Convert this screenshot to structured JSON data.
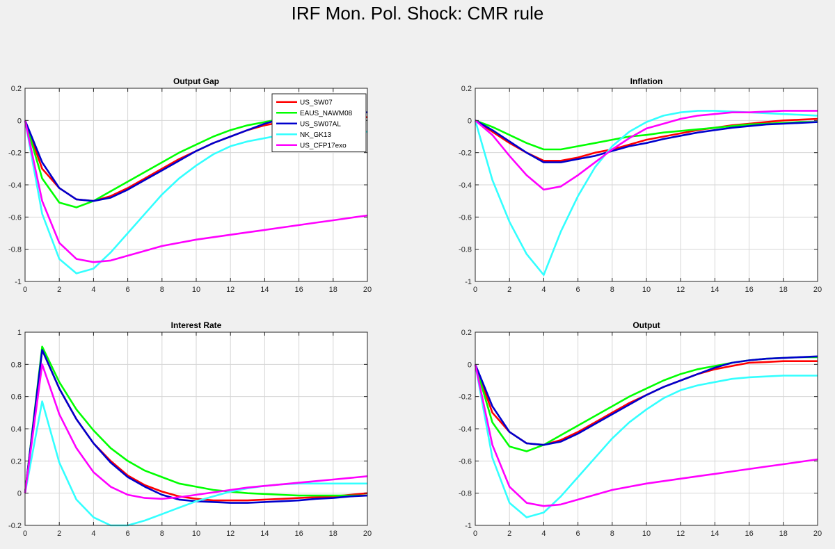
{
  "figure_title": "IRF Mon. Pol. Shock: CMR rule",
  "colors": {
    "US_SW07": "#ff0000",
    "EAUS_NAWM08": "#00ff00",
    "US_SW07AL": "#0000cd",
    "NK_GK13": "#33ffff",
    "US_CFP17exo": "#ff00ff"
  },
  "legend": {
    "placement": "top-right of first panel",
    "entries": [
      "US_SW07",
      "EAUS_NAWM08",
      "US_SW07AL",
      "NK_GK13",
      "US_CFP17exo"
    ]
  },
  "chart_data": [
    {
      "type": "line",
      "title": "Output Gap",
      "grid": true,
      "xlim": [
        0,
        20
      ],
      "ylim": [
        -1,
        0.2
      ],
      "xticks": [
        0,
        2,
        4,
        6,
        8,
        10,
        12,
        14,
        16,
        18,
        20
      ],
      "yticks": [
        -1,
        -0.8,
        -0.6,
        -0.4,
        -0.2,
        0,
        0.2
      ],
      "x": [
        0,
        1,
        2,
        3,
        4,
        5,
        6,
        7,
        8,
        9,
        10,
        11,
        12,
        13,
        14,
        15,
        16,
        17,
        18,
        19,
        20
      ],
      "series": [
        {
          "name": "US_SW07",
          "values": [
            0,
            -0.3,
            -0.42,
            -0.49,
            -0.5,
            -0.47,
            -0.42,
            -0.36,
            -0.3,
            -0.24,
            -0.19,
            -0.14,
            -0.1,
            -0.06,
            -0.03,
            -0.01,
            0.01,
            0.02,
            0.02,
            0.02,
            0.02
          ]
        },
        {
          "name": "EAUS_NAWM08",
          "values": [
            0,
            -0.36,
            -0.51,
            -0.54,
            -0.5,
            -0.44,
            -0.38,
            -0.32,
            -0.26,
            -0.2,
            -0.15,
            -0.1,
            -0.06,
            -0.03,
            -0.01,
            0.01,
            0.03,
            0.04,
            0.04,
            0.05,
            0.05
          ]
        },
        {
          "name": "US_SW07AL",
          "values": [
            0,
            -0.26,
            -0.42,
            -0.49,
            -0.5,
            -0.48,
            -0.43,
            -0.37,
            -0.31,
            -0.25,
            -0.19,
            -0.14,
            -0.1,
            -0.06,
            -0.02,
            0.01,
            0.03,
            0.04,
            0.04,
            0.05,
            0.05
          ]
        },
        {
          "name": "NK_GK13",
          "values": [
            0,
            -0.58,
            -0.86,
            -0.95,
            -0.92,
            -0.82,
            -0.7,
            -0.58,
            -0.46,
            -0.36,
            -0.28,
            -0.21,
            -0.16,
            -0.13,
            -0.11,
            -0.09,
            -0.08,
            -0.075,
            -0.07,
            -0.07,
            -0.07
          ]
        },
        {
          "name": "US_CFP17exo",
          "values": [
            0,
            -0.5,
            -0.76,
            -0.86,
            -0.88,
            -0.87,
            -0.84,
            -0.81,
            -0.78,
            -0.76,
            -0.74,
            -0.725,
            -0.71,
            -0.695,
            -0.68,
            -0.665,
            -0.65,
            -0.635,
            -0.62,
            -0.605,
            -0.59
          ]
        }
      ]
    },
    {
      "type": "line",
      "title": "Inflation",
      "grid": true,
      "xlim": [
        0,
        20
      ],
      "ylim": [
        -1,
        0.2
      ],
      "xticks": [
        0,
        2,
        4,
        6,
        8,
        10,
        12,
        14,
        16,
        18,
        20
      ],
      "yticks": [
        -1,
        -0.8,
        -0.6,
        -0.4,
        -0.2,
        0,
        0.2
      ],
      "x": [
        0,
        1,
        2,
        3,
        4,
        5,
        6,
        7,
        8,
        9,
        10,
        11,
        12,
        13,
        14,
        15,
        16,
        17,
        18,
        19,
        20
      ],
      "series": [
        {
          "name": "US_SW07",
          "values": [
            0,
            -0.07,
            -0.14,
            -0.2,
            -0.25,
            -0.25,
            -0.23,
            -0.2,
            -0.18,
            -0.15,
            -0.12,
            -0.1,
            -0.08,
            -0.06,
            -0.045,
            -0.03,
            -0.02,
            -0.01,
            0,
            0.005,
            0.01
          ]
        },
        {
          "name": "EAUS_NAWM08",
          "values": [
            0,
            -0.04,
            -0.09,
            -0.14,
            -0.18,
            -0.18,
            -0.16,
            -0.14,
            -0.12,
            -0.1,
            -0.09,
            -0.075,
            -0.065,
            -0.055,
            -0.045,
            -0.035,
            -0.025,
            -0.02,
            -0.015,
            -0.01,
            -0.01
          ]
        },
        {
          "name": "US_SW07AL",
          "values": [
            0,
            -0.06,
            -0.13,
            -0.2,
            -0.26,
            -0.26,
            -0.24,
            -0.22,
            -0.19,
            -0.16,
            -0.14,
            -0.115,
            -0.095,
            -0.075,
            -0.06,
            -0.045,
            -0.035,
            -0.025,
            -0.02,
            -0.015,
            -0.01
          ]
        },
        {
          "name": "NK_GK13",
          "values": [
            0,
            -0.37,
            -0.63,
            -0.83,
            -0.96,
            -0.69,
            -0.47,
            -0.29,
            -0.16,
            -0.07,
            -0.01,
            0.03,
            0.05,
            0.06,
            0.06,
            0.055,
            0.05,
            0.045,
            0.04,
            0.035,
            0.03
          ]
        },
        {
          "name": "US_CFP17exo",
          "values": [
            0,
            -0.09,
            -0.22,
            -0.34,
            -0.43,
            -0.41,
            -0.34,
            -0.26,
            -0.18,
            -0.11,
            -0.05,
            -0.02,
            0.01,
            0.03,
            0.04,
            0.05,
            0.05,
            0.055,
            0.06,
            0.06,
            0.06
          ]
        }
      ]
    },
    {
      "type": "line",
      "title": "Interest Rate",
      "grid": true,
      "xlim": [
        0,
        20
      ],
      "ylim": [
        -0.2,
        1
      ],
      "xticks": [
        0,
        2,
        4,
        6,
        8,
        10,
        12,
        14,
        16,
        18,
        20
      ],
      "yticks": [
        -0.2,
        0,
        0.2,
        0.4,
        0.6,
        0.8,
        1
      ],
      "x": [
        0,
        1,
        2,
        3,
        4,
        5,
        6,
        7,
        8,
        9,
        10,
        11,
        12,
        13,
        14,
        15,
        16,
        17,
        18,
        19,
        20
      ],
      "series": [
        {
          "name": "US_SW07",
          "values": [
            0,
            0.89,
            0.65,
            0.46,
            0.31,
            0.2,
            0.11,
            0.05,
            0.01,
            -0.02,
            -0.035,
            -0.045,
            -0.045,
            -0.045,
            -0.04,
            -0.035,
            -0.03,
            -0.025,
            -0.02,
            -0.01,
            0
          ]
        },
        {
          "name": "EAUS_NAWM08",
          "values": [
            0,
            0.91,
            0.69,
            0.52,
            0.39,
            0.28,
            0.2,
            0.14,
            0.1,
            0.06,
            0.04,
            0.02,
            0.01,
            0,
            -0.005,
            -0.01,
            -0.015,
            -0.015,
            -0.015,
            -0.015,
            -0.015
          ]
        },
        {
          "name": "US_SW07AL",
          "values": [
            0,
            0.89,
            0.65,
            0.46,
            0.31,
            0.19,
            0.1,
            0.04,
            -0.01,
            -0.04,
            -0.05,
            -0.055,
            -0.06,
            -0.06,
            -0.055,
            -0.05,
            -0.045,
            -0.035,
            -0.03,
            -0.02,
            -0.015
          ]
        },
        {
          "name": "NK_GK13",
          "values": [
            0,
            0.57,
            0.19,
            -0.04,
            -0.15,
            -0.2,
            -0.2,
            -0.17,
            -0.13,
            -0.09,
            -0.05,
            -0.02,
            0.01,
            0.03,
            0.045,
            0.055,
            0.06,
            0.06,
            0.06,
            0.06,
            0.06
          ]
        },
        {
          "name": "US_CFP17exo",
          "values": [
            0,
            0.8,
            0.49,
            0.28,
            0.13,
            0.04,
            -0.01,
            -0.03,
            -0.035,
            -0.025,
            -0.01,
            0.005,
            0.02,
            0.035,
            0.045,
            0.055,
            0.065,
            0.075,
            0.085,
            0.095,
            0.105
          ]
        }
      ]
    },
    {
      "type": "line",
      "title": "Output",
      "grid": true,
      "xlim": [
        0,
        20
      ],
      "ylim": [
        -1,
        0.2
      ],
      "xticks": [
        0,
        2,
        4,
        6,
        8,
        10,
        12,
        14,
        16,
        18,
        20
      ],
      "yticks": [
        -1,
        -0.8,
        -0.6,
        -0.4,
        -0.2,
        0,
        0.2
      ],
      "x": [
        0,
        1,
        2,
        3,
        4,
        5,
        6,
        7,
        8,
        9,
        10,
        11,
        12,
        13,
        14,
        15,
        16,
        17,
        18,
        19,
        20
      ],
      "series": [
        {
          "name": "US_SW07",
          "values": [
            0,
            -0.3,
            -0.42,
            -0.49,
            -0.5,
            -0.47,
            -0.42,
            -0.36,
            -0.3,
            -0.24,
            -0.19,
            -0.14,
            -0.1,
            -0.06,
            -0.03,
            -0.01,
            0.01,
            0.015,
            0.02,
            0.02,
            0.02
          ]
        },
        {
          "name": "EAUS_NAWM08",
          "values": [
            0,
            -0.36,
            -0.51,
            -0.54,
            -0.5,
            -0.44,
            -0.38,
            -0.32,
            -0.26,
            -0.2,
            -0.15,
            -0.1,
            -0.06,
            -0.03,
            -0.01,
            0.01,
            0.025,
            0.035,
            0.04,
            0.045,
            0.045
          ]
        },
        {
          "name": "US_SW07AL",
          "values": [
            0,
            -0.26,
            -0.42,
            -0.49,
            -0.5,
            -0.48,
            -0.43,
            -0.37,
            -0.31,
            -0.25,
            -0.19,
            -0.14,
            -0.1,
            -0.06,
            -0.02,
            0.01,
            0.025,
            0.035,
            0.04,
            0.045,
            0.05
          ]
        },
        {
          "name": "NK_GK13",
          "values": [
            0,
            -0.58,
            -0.86,
            -0.95,
            -0.92,
            -0.82,
            -0.7,
            -0.58,
            -0.46,
            -0.36,
            -0.28,
            -0.21,
            -0.16,
            -0.13,
            -0.11,
            -0.09,
            -0.08,
            -0.075,
            -0.07,
            -0.07,
            -0.07
          ]
        },
        {
          "name": "US_CFP17exo",
          "values": [
            0,
            -0.5,
            -0.76,
            -0.86,
            -0.88,
            -0.87,
            -0.84,
            -0.81,
            -0.78,
            -0.76,
            -0.74,
            -0.725,
            -0.71,
            -0.695,
            -0.68,
            -0.665,
            -0.65,
            -0.635,
            -0.62,
            -0.605,
            -0.59
          ]
        }
      ]
    }
  ]
}
